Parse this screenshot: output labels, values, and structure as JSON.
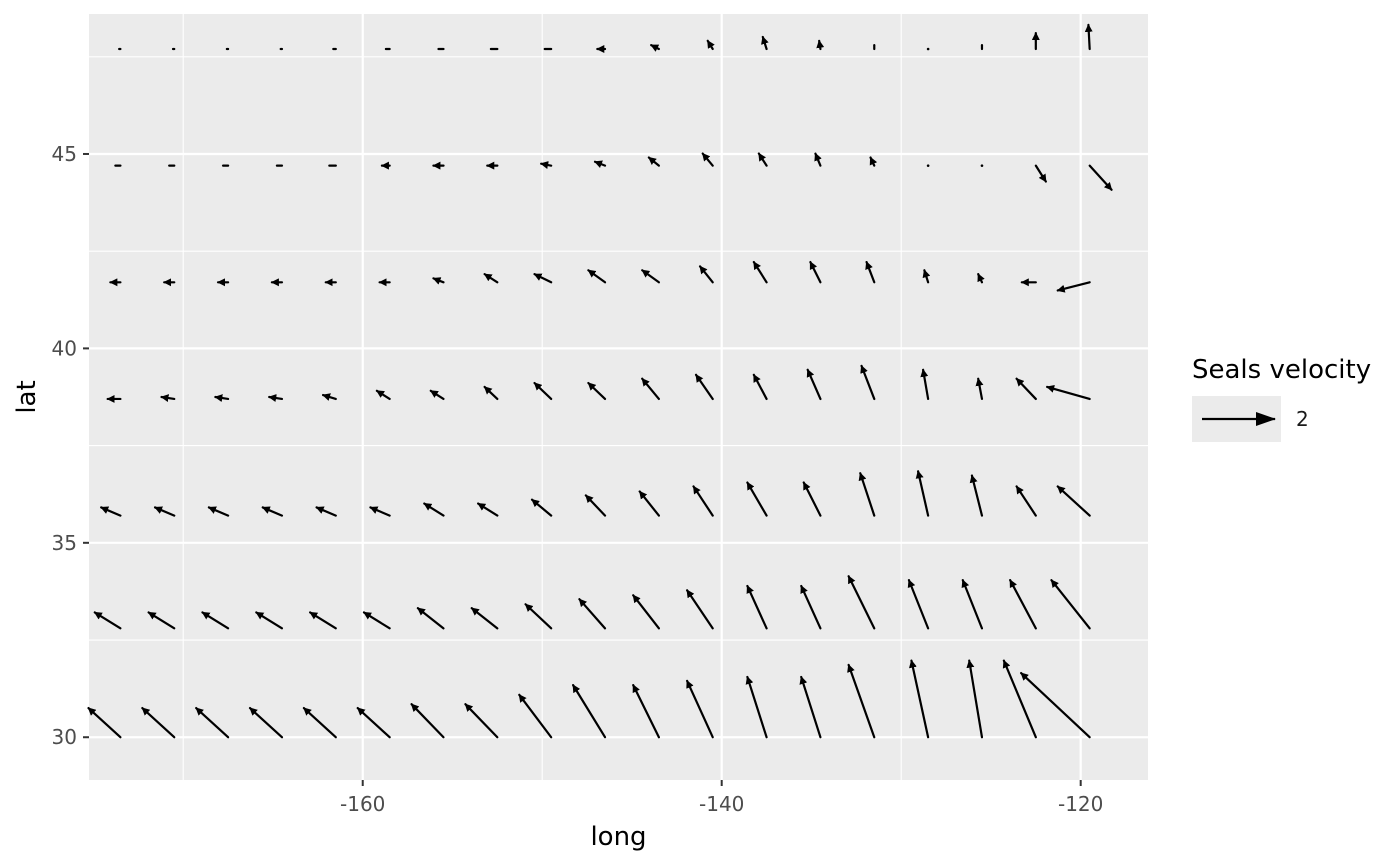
{
  "chart_data": {
    "type": "vector_field",
    "xlabel": "long",
    "ylabel": "lat",
    "xlim": [
      -175.25,
      -116.25
    ],
    "ylim": [
      28.9,
      48.6
    ],
    "x_ticks": [
      -160,
      -140,
      -120
    ],
    "x_tick_labels": [
      "-160",
      "-140",
      "-120"
    ],
    "y_ticks": [
      30,
      35,
      40,
      45
    ],
    "y_tick_labels": [
      "30",
      "35",
      "40",
      "45"
    ],
    "x_minor_ticks": [
      -170,
      -150,
      -130
    ],
    "y_minor_ticks": [
      32.5,
      37.5,
      42.5,
      47.5
    ],
    "grid": true,
    "legend": {
      "title": "Seals velocity",
      "label": "2",
      "position": "right"
    },
    "colors": {
      "panel": "#ebebeb",
      "grid": "#ffffff",
      "arrow": "#000000",
      "text": "#4d4d4d"
    },
    "longitudes": [
      -173.5,
      -170.5,
      -167.5,
      -164.5,
      -161.5,
      -158.5,
      -155.5,
      -152.5,
      -149.5,
      -146.5,
      -143.5,
      -140.5,
      -137.5,
      -134.5,
      -131.5,
      -128.5,
      -125.5,
      -122.5,
      -119.5
    ],
    "latitudes": [
      30.0,
      32.8,
      35.7,
      38.7,
      41.7,
      44.7,
      47.7
    ],
    "dlong": [
      [
        1.78,
        1.78,
        1.78,
        1.78,
        1.78,
        1.78,
        1.78,
        1.78,
        1.78,
        1.78,
        1.43,
        1.43,
        1.07,
        1.07,
        1.43,
        0.93,
        0.71,
        1.78,
        3.82
      ],
      [
        1.43,
        1.43,
        1.43,
        1.43,
        1.43,
        1.43,
        1.43,
        1.43,
        1.43,
        1.43,
        1.43,
        1.43,
        1.07,
        1.07,
        1.43,
        1.07,
        1.07,
        1.43,
        2.13
      ],
      [
        1.07,
        1.07,
        1.07,
        1.07,
        1.07,
        1.07,
        1.07,
        1.07,
        1.07,
        1.07,
        1.07,
        1.07,
        1.07,
        0.93,
        0.78,
        0.56,
        0.56,
        1.07,
        1.78
      ],
      [
        0.71,
        0.71,
        0.71,
        0.71,
        0.71,
        0.71,
        0.71,
        0.71,
        0.93,
        0.93,
        0.93,
        0.93,
        0.71,
        0.71,
        0.71,
        0.28,
        0.21,
        1.07,
        2.37
      ],
      [
        0.56,
        0.56,
        0.56,
        0.56,
        0.56,
        0.56,
        0.56,
        0.71,
        0.93,
        0.93,
        0.93,
        0.71,
        0.71,
        0.56,
        0.43,
        0.21,
        0.21,
        0.78,
        1.78
      ],
      [
        0.28,
        0.28,
        0.28,
        0.28,
        0.36,
        0.43,
        0.56,
        0.56,
        0.56,
        0.56,
        0.56,
        0.56,
        0.43,
        0.28,
        0.21,
        0.0,
        0.0,
        -0.56,
        -1.22
      ],
      [
        0.07,
        0.07,
        0.07,
        0.07,
        0.14,
        0.21,
        0.28,
        0.36,
        0.36,
        0.43,
        0.43,
        0.28,
        0.21,
        0.07,
        0.0,
        0.0,
        0.0,
        0.0,
        0.07
      ]
    ],
    "dlat": [
      [
        -0.75,
        -0.75,
        -0.75,
        -0.75,
        -0.75,
        -0.75,
        -0.85,
        -0.85,
        -1.09,
        -1.34,
        -1.34,
        -1.45,
        -1.55,
        -1.55,
        -1.86,
        -1.97,
        -1.97,
        -1.97,
        -1.65
      ],
      [
        -0.41,
        -0.41,
        -0.41,
        -0.41,
        -0.41,
        -0.41,
        -0.52,
        -0.52,
        -0.62,
        -0.75,
        -0.85,
        -0.98,
        -1.09,
        -1.09,
        -1.34,
        -1.24,
        -1.24,
        -1.24,
        -1.24
      ],
      [
        -0.21,
        -0.21,
        -0.21,
        -0.21,
        -0.21,
        -0.21,
        -0.31,
        -0.31,
        -0.41,
        -0.52,
        -0.62,
        -0.75,
        -0.85,
        -0.85,
        -1.09,
        -1.14,
        -1.03,
        -0.75,
        -0.75
      ],
      [
        0.0,
        -0.05,
        -0.05,
        -0.05,
        -0.1,
        -0.21,
        -0.21,
        -0.31,
        -0.41,
        -0.41,
        -0.52,
        -0.62,
        -0.62,
        -0.75,
        -0.85,
        -0.75,
        -0.52,
        -0.52,
        -0.31
      ],
      [
        0.0,
        0.0,
        0.0,
        0.0,
        0.0,
        0.0,
        -0.1,
        -0.21,
        -0.21,
        -0.31,
        -0.31,
        -0.41,
        -0.52,
        -0.52,
        -0.52,
        -0.31,
        -0.21,
        0.0,
        0.21
      ],
      [
        0.0,
        0.0,
        0.0,
        0.0,
        0.0,
        0.0,
        0.0,
        0.0,
        -0.05,
        -0.1,
        -0.21,
        -0.31,
        -0.31,
        -0.31,
        -0.21,
        0.0,
        0.0,
        0.41,
        0.62
      ],
      [
        0.0,
        0.0,
        0.0,
        0.0,
        0.0,
        0.0,
        0.0,
        0.0,
        0.0,
        0.0,
        -0.1,
        -0.21,
        -0.31,
        -0.21,
        -0.1,
        0.0,
        -0.1,
        -0.41,
        -0.62
      ]
    ]
  }
}
